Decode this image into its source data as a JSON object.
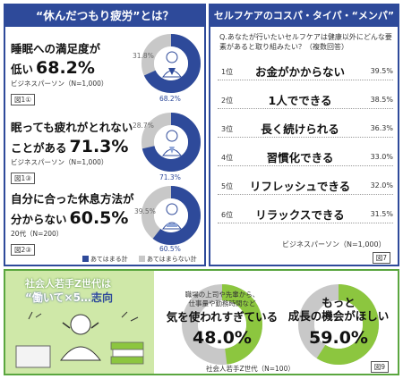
{
  "left": {
    "title": "“休んだつもり疲労”とは？",
    "items": [
      {
        "line1": "睡眠への満足度が",
        "line2_label": "低い",
        "percent": "68.2%",
        "source": "ビジネスパーソン（N=1,000）",
        "figure": "図1①",
        "yes_label": "68.2%",
        "no_label": "31.8%",
        "yes_value": 68.2
      },
      {
        "line1": "眠っても疲れがとれない",
        "line2_label": "ことがある",
        "percent": "71.3%",
        "source": "ビジネスパーソン（N=1,000）",
        "figure": "図1③",
        "yes_label": "71.3%",
        "no_label": "28.7%",
        "yes_value": 71.3
      },
      {
        "line1": "自分に合った休息方法が",
        "line2_label": "分からない",
        "percent": "60.5%",
        "source": "20代（N=200）",
        "figure": "図2③",
        "yes_label": "60.5%",
        "no_label": "39.5%",
        "yes_value": 60.5
      }
    ],
    "legend": {
      "yes": "あてはまる計",
      "no": "あてはまらない計"
    }
  },
  "right": {
    "title": "セルフケアのコスパ・タイパ・“メンパ”",
    "question": "Q.あなたが行いたいセルフケアは健康以外にどんな要素があると取り組みたい？（複数回答）",
    "ranks": [
      {
        "rank": "1位",
        "text": "お金がかからない",
        "pct": "39.5%"
      },
      {
        "rank": "2位",
        "text": "1人でできる",
        "pct": "38.5%"
      },
      {
        "rank": "3位",
        "text": "長く続けられる",
        "pct": "36.3%"
      },
      {
        "rank": "4位",
        "text": "習慣化できる",
        "pct": "33.0%"
      },
      {
        "rank": "5位",
        "text": "リフレッシュできる",
        "pct": "32.0%"
      },
      {
        "rank": "6位",
        "text": "リラックスできる",
        "pct": "31.5%"
      }
    ],
    "source": "ビジネスパーソン（N=1,000）",
    "figure": "図7"
  },
  "bottom": {
    "gen_line1": "社会人若手Z世代は",
    "gen_line2a": "“働いて×5…”",
    "gen_line2b": "志向",
    "stat1": {
      "small1": "職場の上司や先輩から、",
      "small2": "仕事量や勤務時間など",
      "big": "気を使われすぎている",
      "pct": "48.0%",
      "value": 48.0
    },
    "stat2": {
      "big1": "もっと",
      "big2": "成長の機会がほしい",
      "pct": "59.0%",
      "value": 59.0
    },
    "source": "社会人若手Z世代（N=100）",
    "figure": "図9"
  },
  "colors": {
    "navy": "#2e4a9a",
    "gray": "#c8c8c8",
    "green": "#8cc63f",
    "lightgreen": "#cfe8a8"
  }
}
